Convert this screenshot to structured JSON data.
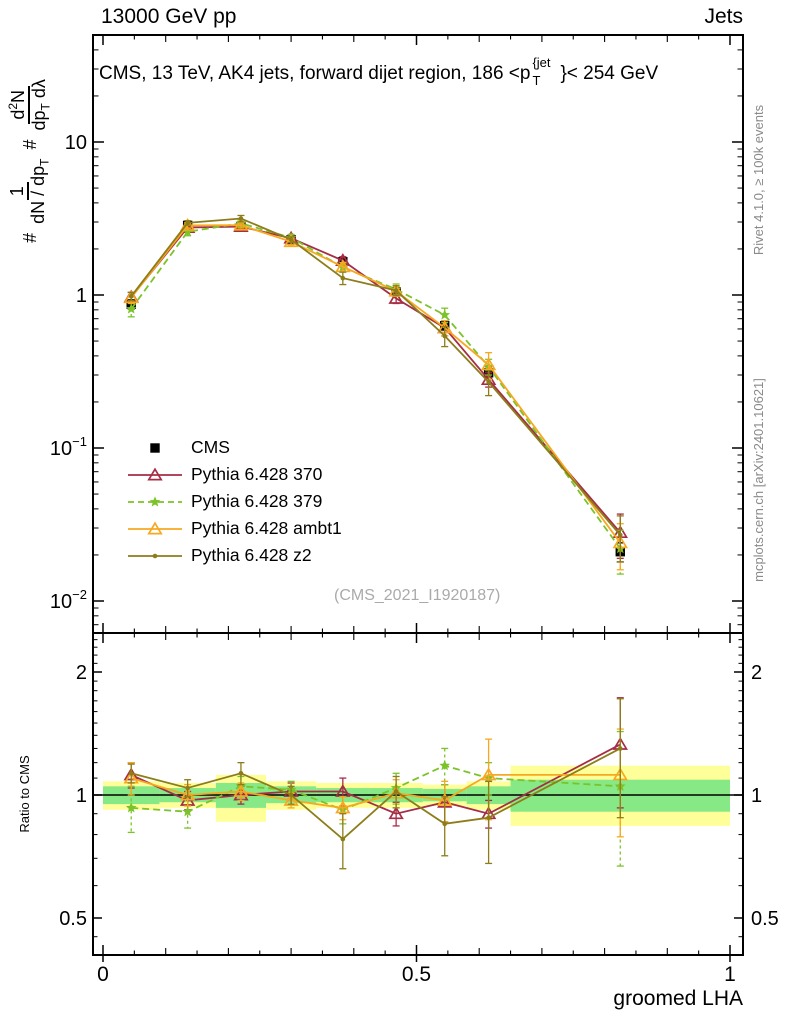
{
  "header": {
    "left": "13000 GeV pp",
    "right": "Jets"
  },
  "title": {
    "part_a": "CMS, 13 TeV, AK4 jets, forward dijet region, 186 <p",
    "sup": "{jet",
    "sub": "T",
    "part_b": "}< 254 GeV"
  },
  "ylabel_main": {
    "hash1": "#",
    "frac1_num": "1",
    "frac1_den": "dN / dp",
    "frac1_den_sub": "T",
    "hash2": "#",
    "frac2_num": "d",
    "frac2_num_sup": "2",
    "frac2_num_tail": "N",
    "frac2_den": "dp",
    "frac2_den_sub": "T",
    "frac2_den_tail": " dλ"
  },
  "ratio_panel": {
    "ylabel": "Ratio to CMS"
  },
  "notes": {
    "rivet": "Rivet 4.1.0, ≥ 100k events",
    "mcplots": "mcplots.cern.ch [arXiv:2401.10621]",
    "watermark": "(CMS_2021_I1920187)"
  },
  "chart_data": {
    "type": "line",
    "title": "CMS, 13 TeV, AK4 jets, forward dijet region, 186 < pT{jet} < 254 GeV",
    "xlabel": "groomed LHA",
    "ylabel": "# 1/(dN/dp_T) # d²N/(dp_T dλ)",
    "ratio_ylabel": "Ratio to CMS",
    "xlim": [
      0,
      1
    ],
    "ylim_main": [
      0.0062,
      50
    ],
    "ylim_ratio": [
      0.41,
      2.45
    ],
    "yscale_main": "log10",
    "yscale_ratio": "log2",
    "grid": false,
    "legend_position": "inside-left-middle",
    "x_tick_labels": [
      {
        "v": 0,
        "t": "0"
      },
      {
        "v": 0.5,
        "t": "0.5"
      },
      {
        "v": 1,
        "t": "1"
      }
    ],
    "y_tick_labels": [
      {
        "v": 10,
        "t": "10",
        "exp": ""
      },
      {
        "v": 1,
        "t": "1",
        "exp": ""
      },
      {
        "v": 0.1,
        "t": "10",
        "exp": "−1"
      },
      {
        "v": 0.01,
        "t": "10",
        "exp": "−2"
      }
    ],
    "ratio_tick_labels": [
      {
        "v": 2,
        "t": "2"
      },
      {
        "v": 1,
        "t": "1"
      },
      {
        "v": 0.5,
        "t": "0.5"
      }
    ],
    "bin_edges": [
      0,
      0.09,
      0.18,
      0.26,
      0.34,
      0.425,
      0.51,
      0.58,
      0.65,
      1.0
    ],
    "bin_centers": [
      0.045,
      0.135,
      0.22,
      0.3,
      0.3825,
      0.4675,
      0.545,
      0.615,
      0.825
    ],
    "series": [
      {
        "id": "cms",
        "name": "CMS",
        "color": "#000000",
        "marker": "square",
        "line": "none",
        "values": [
          0.87,
          2.85,
          2.8,
          2.3,
          1.65,
          1.05,
          0.63,
          0.31,
          0.021
        ],
        "errors": [
          0.06,
          0.12,
          0.12,
          0.1,
          0.08,
          0.06,
          0.04,
          0.03,
          0.003
        ],
        "ratio": null,
        "ratio_errors": null
      },
      {
        "id": "py370",
        "name": "Pythia 6.428 370",
        "color": "#a52e46",
        "marker": "triangle-open",
        "line": "solid",
        "values": [
          0.97,
          2.76,
          2.8,
          2.35,
          1.68,
          0.95,
          0.61,
          0.28,
          0.028
        ],
        "errors": [
          0.07,
          0.12,
          0.12,
          0.1,
          0.1,
          0.07,
          0.07,
          0.03,
          0.009
        ],
        "ratio": [
          1.12,
          0.97,
          1.0,
          1.02,
          1.02,
          0.9,
          0.96,
          0.9,
          1.33
        ],
        "ratio_errors": [
          0.08,
          0.05,
          0.05,
          0.05,
          0.08,
          0.06,
          0.1,
          0.07,
          0.4
        ]
      },
      {
        "id": "py379",
        "name": "Pythia 6.428 379",
        "color": "#7cc32a",
        "marker": "star",
        "line": "dashed",
        "values": [
          0.81,
          2.59,
          2.94,
          2.37,
          1.52,
          1.09,
          0.74,
          0.34,
          0.022
        ],
        "errors": [
          0.09,
          0.15,
          0.15,
          0.12,
          0.1,
          0.09,
          0.08,
          0.04,
          0.007
        ],
        "ratio": [
          0.93,
          0.91,
          1.05,
          1.03,
          0.92,
          1.04,
          1.18,
          1.1,
          1.05
        ],
        "ratio_errors": [
          0.12,
          0.08,
          0.06,
          0.05,
          0.07,
          0.09,
          0.12,
          0.1,
          0.38
        ]
      },
      {
        "id": "ambt1",
        "name": "Pythia 6.428 ambt1",
        "color": "#f7a820",
        "marker": "triangle-open",
        "line": "solid",
        "values": [
          0.96,
          2.85,
          2.86,
          2.23,
          1.53,
          1.06,
          0.61,
          0.35,
          0.024
        ],
        "errors": [
          0.08,
          0.12,
          0.12,
          0.1,
          0.1,
          0.08,
          0.07,
          0.07,
          0.008
        ],
        "ratio": [
          1.1,
          1.0,
          1.02,
          0.97,
          0.93,
          1.01,
          0.97,
          1.12,
          1.12
        ],
        "ratio_errors": [
          0.1,
          0.06,
          0.05,
          0.04,
          0.06,
          0.08,
          0.11,
          0.25,
          0.33
        ]
      },
      {
        "id": "z2",
        "name": "Pythia 6.428 z2",
        "color": "#8d7d1a",
        "marker": "dot",
        "line": "solid",
        "values": [
          0.98,
          2.96,
          3.16,
          2.3,
          1.29,
          1.07,
          0.54,
          0.27,
          0.027
        ],
        "errors": [
          0.06,
          0.1,
          0.15,
          0.1,
          0.12,
          0.08,
          0.08,
          0.05,
          0.009
        ],
        "ratio": [
          1.13,
          1.04,
          1.13,
          1.0,
          0.78,
          1.02,
          0.85,
          0.88,
          1.3
        ],
        "ratio_errors": [
          0.06,
          0.05,
          0.07,
          0.05,
          0.12,
          0.09,
          0.14,
          0.2,
          0.42
        ]
      }
    ],
    "ratio_bands": [
      {
        "outer": [
          0.92,
          1.08
        ],
        "inner": [
          0.95,
          1.05
        ]
      },
      {
        "outer": [
          0.93,
          1.07
        ],
        "inner": [
          0.96,
          1.04
        ]
      },
      {
        "outer": [
          0.86,
          1.12
        ],
        "inner": [
          0.93,
          1.07
        ]
      },
      {
        "outer": [
          0.92,
          1.08
        ],
        "inner": [
          0.955,
          1.05
        ]
      },
      {
        "outer": [
          0.93,
          1.07
        ],
        "inner": [
          0.96,
          1.04
        ]
      },
      {
        "outer": [
          0.93,
          1.07
        ],
        "inner": [
          0.96,
          1.04
        ]
      },
      {
        "outer": [
          0.94,
          1.06
        ],
        "inner": [
          0.965,
          1.035
        ]
      },
      {
        "outer": [
          0.92,
          1.08
        ],
        "inner": [
          0.95,
          1.05
        ]
      },
      {
        "outer": [
          0.84,
          1.18
        ],
        "inner": [
          0.91,
          1.09
        ]
      }
    ],
    "colors": {
      "band_outer": "#ffff99",
      "band_inner": "#86e986",
      "reference_line": "#000000"
    }
  }
}
